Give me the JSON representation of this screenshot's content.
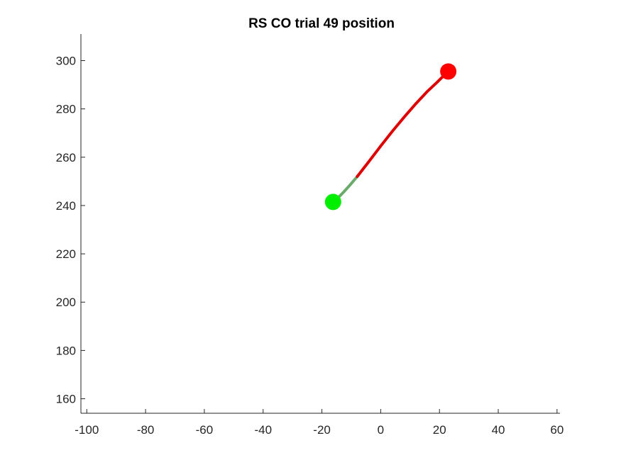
{
  "chart_data": {
    "type": "line",
    "title": "RS  CO trial 49 position",
    "xlabel": "",
    "ylabel": "",
    "xlim": [
      -102,
      61
    ],
    "ylim": [
      154,
      311
    ],
    "grid": false,
    "x_ticks": [
      -100,
      -80,
      -60,
      -40,
      -20,
      0,
      20,
      40,
      60
    ],
    "x_tick_labels": [
      "-100",
      "-80",
      "-60",
      "-40",
      "-20",
      "0",
      "20",
      "40",
      "60"
    ],
    "y_ticks": [
      160,
      180,
      200,
      220,
      240,
      260,
      280,
      300
    ],
    "y_tick_labels": [
      "160",
      "180",
      "200",
      "220",
      "240",
      "260",
      "280",
      "300"
    ],
    "series": [
      {
        "color": "#1f5fa8",
        "x": [
          -16.2,
          -15.5,
          -14.2
        ],
        "y": [
          241.5,
          242.2,
          243.6
        ]
      },
      {
        "color": "#6aaa6a",
        "x": [
          -14.2,
          -12.5,
          -10.5,
          -8.0
        ],
        "y": [
          243.6,
          245.7,
          248.4,
          252.0
        ]
      },
      {
        "color": "#dd0000",
        "x": [
          -8.0,
          -4.0,
          0.0,
          4.0,
          8.0,
          12.0,
          16.0,
          19.0,
          21.5,
          23.0
        ],
        "y": [
          252.0,
          258.2,
          264.6,
          270.8,
          276.6,
          282.2,
          287.4,
          290.8,
          293.8,
          295.5
        ]
      }
    ],
    "markers": [
      {
        "type": "start",
        "color": "#00ee00",
        "x": -16.2,
        "y": 241.5
      },
      {
        "type": "end",
        "color": "#ff0000",
        "x": 23.0,
        "y": 295.5
      }
    ]
  }
}
